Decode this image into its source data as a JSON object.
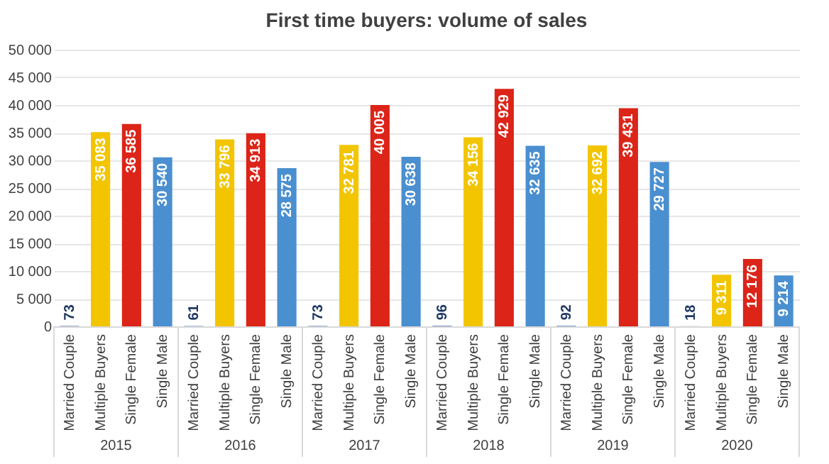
{
  "chart_data": {
    "type": "bar",
    "title": "First time buyers: volume of sales",
    "categories": [
      "Married Couple",
      "Multiple Buyers",
      "Single Female",
      "Single Male",
      "Married Couple",
      "Multiple Buyers",
      "Single Female",
      "Single Male",
      "Married Couple",
      "Multiple Buyers",
      "Single Female",
      "Single Male",
      "Married Couple",
      "Multiple Buyers",
      "Single Female",
      "Single Male",
      "Married Couple",
      "Multiple Buyers",
      "Single Female",
      "Single Male",
      "Married Couple",
      "Multiple Buyers",
      "Single Female",
      "Single Male"
    ],
    "values": [
      73,
      35083,
      36585,
      30540,
      61,
      33796,
      34913,
      28575,
      73,
      32781,
      40005,
      30638,
      96,
      34156,
      42929,
      32635,
      92,
      32692,
      39431,
      29727,
      18,
      9311,
      12176,
      9214
    ],
    "value_labels": [
      "73",
      "35 083",
      "36 585",
      "30 540",
      "61",
      "33 796",
      "34 913",
      "28 575",
      "73",
      "32 781",
      "40 005",
      "30 638",
      "96",
      "34 156",
      "42 929",
      "32 635",
      "92",
      "32 692",
      "39 431",
      "29 727",
      "18",
      "9 311",
      "12 176",
      "9 214"
    ],
    "colors": [
      "#4a6fb5",
      "#f2c500",
      "#dc2418",
      "#4a8fd0",
      "#4a6fb5",
      "#f2c500",
      "#dc2418",
      "#4a8fd0",
      "#4a6fb5",
      "#f2c500",
      "#dc2418",
      "#4a8fd0",
      "#4a6fb5",
      "#f2c500",
      "#dc2418",
      "#4a8fd0",
      "#4a6fb5",
      "#f2c500",
      "#dc2418",
      "#4a8fd0",
      "#4a6fb5",
      "#f2c500",
      "#dc2418",
      "#4a8fd0"
    ],
    "annotations": [
      "2015",
      "2016",
      "2017",
      "2018",
      "2019",
      "2020"
    ],
    "ylim": [
      0,
      50000
    ],
    "yticks": [
      0,
      {
        "value": 5000,
        "label": "5 000"
      },
      {
        "value": 10000,
        "label": "10 000"
      },
      {
        "value": 15000,
        "label": "15 000"
      },
      {
        "value": 20000,
        "label": "20 000"
      },
      {
        "value": 25000,
        "label": "25 000"
      },
      {
        "value": 30000,
        "label": "30 000"
      },
      {
        "value": 35000,
        "label": "35 000"
      },
      {
        "value": 40000,
        "label": "40 000"
      },
      {
        "value": 45000,
        "label": "45 000"
      },
      {
        "value": 50000,
        "label": "50 000"
      }
    ],
    "grid": "y"
  }
}
